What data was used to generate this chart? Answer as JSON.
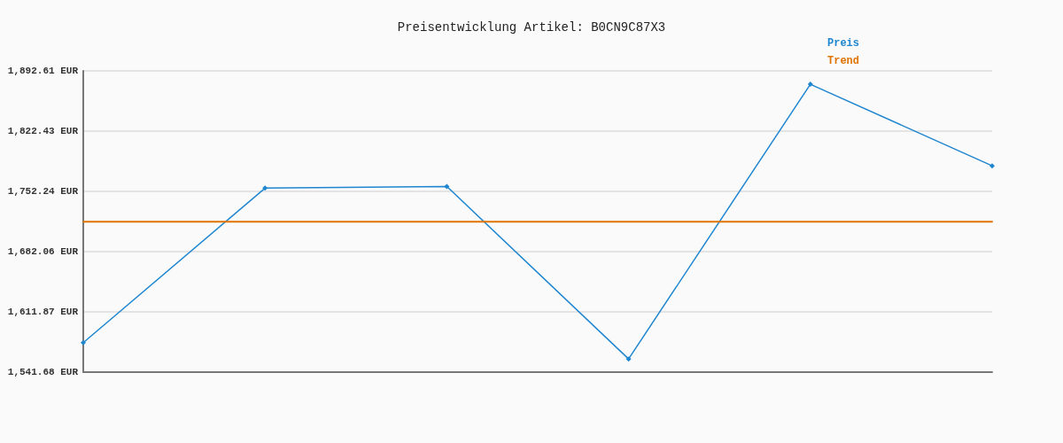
{
  "chart_data": {
    "type": "line",
    "title": "Preisentwicklung Artikel: B0CN9C87X3",
    "categories": [
      null,
      null,
      null,
      null,
      null,
      null
    ],
    "series": [
      {
        "name": "Preis",
        "color": "#1f86cf",
        "values": [
          1576,
          1756,
          1758,
          1557,
          1877,
          1782
        ],
        "marker": "diamond"
      },
      {
        "name": "Trend",
        "color": "#e07400",
        "values": [
          1717,
          1717,
          1717,
          1717,
          1717,
          1717
        ],
        "marker": "none"
      }
    ],
    "ylim": [
      1541.68,
      1892.61
    ],
    "yticks": [
      {
        "value": 1541.68,
        "label": "1,541.68 EUR"
      },
      {
        "value": 1611.87,
        "label": "1,611.87 EUR"
      },
      {
        "value": 1682.06,
        "label": "1,682.06 EUR"
      },
      {
        "value": 1752.24,
        "label": "1,752.24 EUR"
      },
      {
        "value": 1822.43,
        "label": "1,822.43 EUR"
      },
      {
        "value": 1892.61,
        "label": "1,892.61 EUR"
      }
    ],
    "grid": "y",
    "legend": "top right",
    "tick_labels": "y",
    "line_style": "solid"
  }
}
